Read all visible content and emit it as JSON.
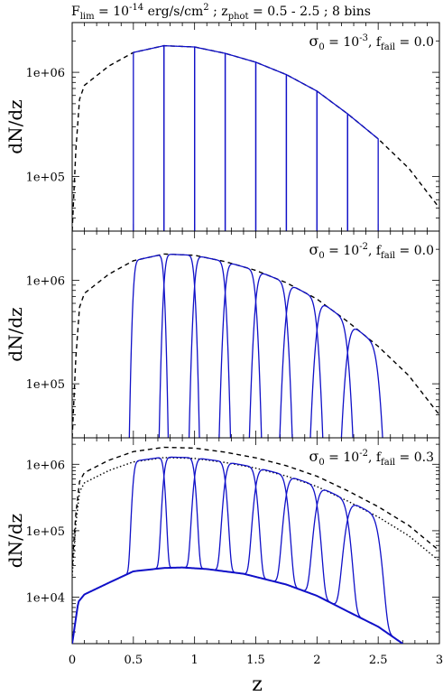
{
  "figure": {
    "title_parts": {
      "flux_sym": "F",
      "flux_sub": "lim",
      "eq1": " = 10",
      "flux_exp": "-14",
      "flux_units": " erg/s/cm",
      "units_exp": "2",
      "sep": " ; ",
      "z_sym": "z",
      "z_sub": "phot",
      "z_range": " = 0.5 - 2.5 ; 8 bins"
    },
    "xlabel": "z",
    "ylabel": "dN/dz",
    "xlim": [
      0,
      3
    ],
    "xticks": [
      "0",
      "0.5",
      "1",
      "1.5",
      "2",
      "2.5",
      "3"
    ]
  },
  "chart_data": [
    {
      "type": "line",
      "panel": 1,
      "annotation": {
        "sigma_sym": "σ",
        "sigma_sub": "0",
        "sigma_eq": " = 10",
        "sigma_exp": "-3",
        "sep": ", ",
        "f_sym": "f",
        "f_sub": "fail",
        "f_eq": " = 0.0"
      },
      "ylabel": "dN/dz",
      "yscale": "log",
      "ylim": [
        30000,
        3000000
      ],
      "yticks": [
        "1e+05",
        "1e+06"
      ],
      "bin_edges": [
        0.5,
        0.75,
        1.0,
        1.25,
        1.5,
        1.75,
        2.0,
        2.25,
        2.5
      ],
      "bin_width_sigma": 0.001,
      "total_curve": {
        "x": [
          0.0,
          0.03,
          0.06,
          0.1,
          0.3,
          0.5,
          0.75,
          1.0,
          1.25,
          1.5,
          1.75,
          2.0,
          2.25,
          2.5,
          2.75,
          3.0
        ],
        "y": [
          30000,
          180000,
          550000,
          750000,
          1150000,
          1550000,
          1800000,
          1750000,
          1520000,
          1250000,
          950000,
          660000,
          400000,
          230000,
          120000,
          50000
        ]
      },
      "failure_curve": null,
      "bin_peaks": [
        1550000,
        1800000,
        1770000,
        1520000,
        1250000,
        950000,
        660000,
        400000,
        230000
      ],
      "series": [
        {
          "style": "dashed",
          "color": "#000000"
        },
        {
          "style": "solid",
          "color": "#1010c8"
        }
      ]
    },
    {
      "type": "line",
      "panel": 2,
      "annotation": {
        "sigma_sym": "σ",
        "sigma_sub": "0",
        "sigma_eq": " = 10",
        "sigma_exp": "-2",
        "sep": ", ",
        "f_sym": "f",
        "f_sub": "fail",
        "f_eq": " = 0.0"
      },
      "ylabel": "dN/dz",
      "yscale": "log",
      "ylim": [
        30000,
        3000000
      ],
      "yticks": [
        "1e+05",
        "1e+06"
      ],
      "bin_edges": [
        0.5,
        0.75,
        1.0,
        1.25,
        1.5,
        1.75,
        2.0,
        2.25,
        2.5
      ],
      "bin_width_sigma": 0.01,
      "total_curve": {
        "x": [
          0.0,
          0.03,
          0.06,
          0.1,
          0.3,
          0.5,
          0.75,
          1.0,
          1.25,
          1.5,
          1.75,
          2.0,
          2.25,
          2.5,
          2.75,
          3.0
        ],
        "y": [
          30000,
          180000,
          550000,
          750000,
          1150000,
          1550000,
          1800000,
          1750000,
          1520000,
          1250000,
          950000,
          660000,
          400000,
          230000,
          120000,
          50000
        ]
      },
      "failure_curve": null,
      "bin_peaks": [
        1550000,
        1800000,
        1770000,
        1520000,
        1250000,
        950000,
        660000,
        400000,
        230000
      ],
      "series": [
        {
          "style": "dashed",
          "color": "#000000"
        },
        {
          "style": "solid",
          "color": "#1010c8"
        }
      ]
    },
    {
      "type": "line",
      "panel": 3,
      "annotation": {
        "sigma_sym": "σ",
        "sigma_sub": "0",
        "sigma_eq": " = 10",
        "sigma_exp": "-2",
        "sep": ", ",
        "f_sym": "f",
        "f_sub": "fail",
        "f_eq": " = 0.3"
      },
      "ylabel": "dN/dz",
      "yscale": "log",
      "ylim": [
        2000,
        2500000
      ],
      "yticks": [
        "1e+04",
        "1e+05",
        "1e+06"
      ],
      "bin_edges": [
        0.5,
        0.75,
        1.0,
        1.25,
        1.5,
        1.75,
        2.0,
        2.25,
        2.5
      ],
      "bin_width_sigma": 0.01,
      "total_curve": {
        "x": [
          0.0,
          0.03,
          0.06,
          0.1,
          0.3,
          0.5,
          0.75,
          1.0,
          1.25,
          1.5,
          1.75,
          2.0,
          2.25,
          2.5,
          2.75,
          3.0
        ],
        "y": [
          30000,
          180000,
          550000,
          750000,
          1150000,
          1550000,
          1800000,
          1750000,
          1520000,
          1250000,
          950000,
          660000,
          400000,
          230000,
          120000,
          50000
        ]
      },
      "detected_curve": {
        "x": [
          0.0,
          0.03,
          0.06,
          0.1,
          0.3,
          0.5,
          0.75,
          1.0,
          1.25,
          1.5,
          1.75,
          2.0,
          2.25,
          2.5,
          2.75,
          3.0
        ],
        "y": [
          21000,
          126000,
          385000,
          525000,
          805000,
          1085000,
          1260000,
          1225000,
          1064000,
          875000,
          665000,
          462000,
          280000,
          161000,
          84000,
          35000
        ]
      },
      "failure_curve": {
        "x": [
          0.0,
          0.05,
          0.1,
          0.3,
          0.5,
          0.75,
          0.9,
          1.1,
          1.4,
          1.75,
          2.0,
          2.3,
          2.5,
          2.7
        ],
        "y": [
          2000,
          8500,
          11000,
          16500,
          24500,
          27500,
          28000,
          26500,
          22500,
          15500,
          10500,
          5500,
          3600,
          2000
        ]
      },
      "bin_peaks": [
        1085000,
        1260000,
        1240000,
        1064000,
        875000,
        665000,
        462000,
        280000,
        161000
      ],
      "series": [
        {
          "style": "dashed",
          "color": "#000000"
        },
        {
          "style": "dotted",
          "color": "#000000"
        },
        {
          "style": "solid",
          "color": "#1010c8"
        }
      ]
    }
  ]
}
